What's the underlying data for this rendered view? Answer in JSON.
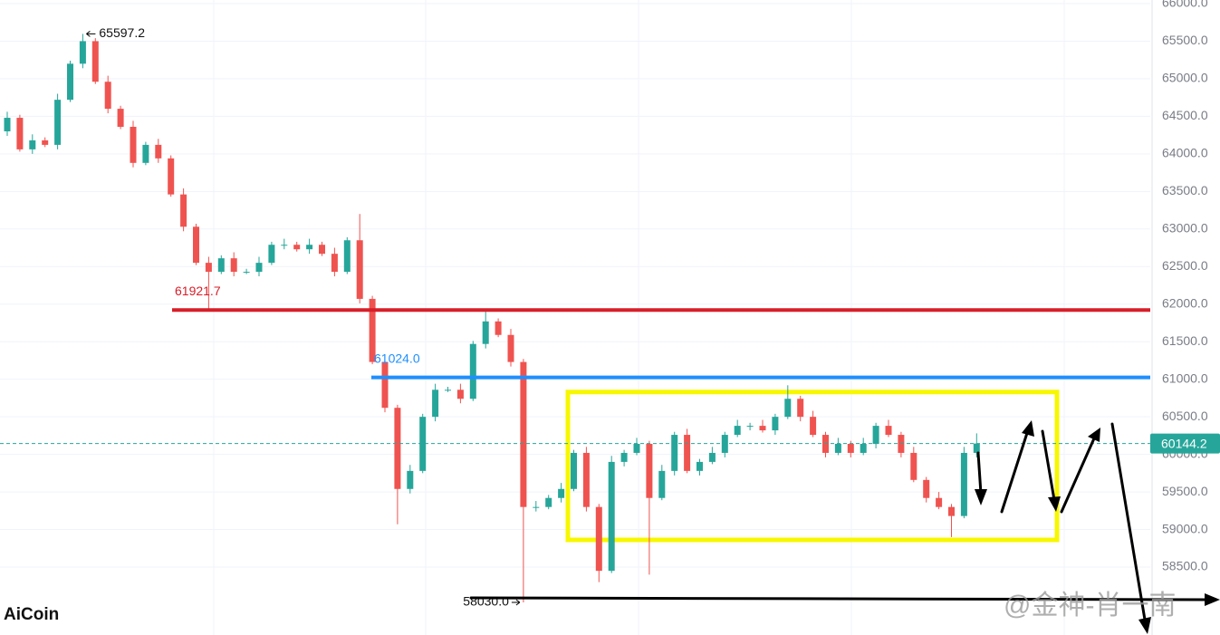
{
  "chart_data": {
    "type": "candlestick",
    "open": [
      64300,
      64480,
      64060,
      64180,
      64120,
      64720,
      65200,
      65500,
      64960,
      64600,
      64360,
      63880,
      64120,
      63940,
      63460,
      63030,
      62550,
      62430,
      62610,
      62430,
      62430,
      62550,
      62790,
      62790,
      62730,
      62790,
      62670,
      62430,
      62850,
      62070,
      61230,
      60620,
      59540,
      59780,
      60500,
      60860,
      60860,
      60740,
      61470,
      61770,
      61590,
      61230,
      59300,
      59300,
      59420,
      59540,
      60020,
      59300,
      58450,
      59900,
      60020,
      60140,
      59420,
      59780,
      60260,
      59780,
      59900,
      60020,
      60260,
      60380,
      60380,
      60320,
      60500,
      60740,
      60500,
      60260,
      60020,
      60140,
      60020,
      60140,
      60380,
      60260,
      60020,
      59660,
      59420,
      59300,
      59180,
      60020
    ],
    "high": [
      64560,
      64520,
      64260,
      64220,
      64800,
      65240,
      65597.2,
      65540,
      65040,
      64640,
      64440,
      64160,
      64200,
      63980,
      63540,
      63070,
      62630,
      62650,
      62690,
      62470,
      62630,
      62830,
      62870,
      62830,
      62870,
      62830,
      62750,
      62890,
      63200,
      62110,
      61310,
      60660,
      59860,
      60540,
      60940,
      60900,
      60940,
      61510,
      61920,
      61810,
      61670,
      61270,
      59380,
      59460,
      59620,
      60060,
      60100,
      59340,
      59980,
      60060,
      60220,
      60180,
      59860,
      60300,
      60340,
      59940,
      60100,
      60300,
      60460,
      60420,
      60460,
      60540,
      60920,
      60780,
      60580,
      60300,
      60220,
      60180,
      60220,
      60420,
      60460,
      60300,
      60100,
      59700,
      59500,
      59340,
      60100,
      60280
    ],
    "low": [
      64240,
      64030,
      64000,
      64090,
      64060,
      64690,
      65140,
      64930,
      64540,
      64330,
      63820,
      63850,
      63880,
      63430,
      62970,
      62520,
      61921.7,
      62400,
      62370,
      62400,
      62370,
      62520,
      62730,
      62700,
      62670,
      62640,
      62370,
      62400,
      62010,
      61200,
      60560,
      59070,
      59480,
      59750,
      60440,
      60830,
      60680,
      60710,
      61410,
      61560,
      61170,
      58030.0,
      59240,
      59270,
      59360,
      59510,
      59240,
      58300,
      58420,
      59840,
      59990,
      58400,
      59390,
      59720,
      59750,
      59720,
      59870,
      59960,
      60230,
      60320,
      60290,
      60260,
      60470,
      60440,
      60230,
      59960,
      59990,
      59960,
      59990,
      60080,
      60230,
      59960,
      59630,
      59360,
      59270,
      58900,
      59150,
      59960
    ],
    "close": [
      64480,
      64060,
      64180,
      64120,
      64720,
      65200,
      65500,
      64960,
      64600,
      64360,
      63880,
      64120,
      63940,
      63460,
      63030,
      62550,
      62430,
      62610,
      62430,
      62430,
      62550,
      62790,
      62790,
      62730,
      62790,
      62670,
      62430,
      62850,
      62070,
      61230,
      60620,
      59540,
      59780,
      60500,
      60860,
      60860,
      60740,
      61470,
      61770,
      61590,
      61230,
      59300,
      59300,
      59420,
      59540,
      60020,
      59300,
      58450,
      59900,
      60020,
      60140,
      59420,
      59780,
      60260,
      59780,
      59900,
      60020,
      60260,
      60380,
      60380,
      60320,
      60500,
      60740,
      60500,
      60260,
      60020,
      60140,
      60020,
      60140,
      60380,
      60260,
      60020,
      59660,
      59420,
      59300,
      59180,
      60020,
      60144.2
    ],
    "up_color": "#26a69a",
    "down_color": "#ef5350",
    "ylim": [
      57596,
      66048
    ],
    "yticks": [
      {
        "value": 58500,
        "label": "58500.0"
      },
      {
        "value": 59000,
        "label": "59000.0"
      },
      {
        "value": 59500,
        "label": "59500.0"
      },
      {
        "value": 60000,
        "label": "60000.0"
      },
      {
        "value": 60500,
        "label": "60500.0"
      },
      {
        "value": 61000,
        "label": "61000.0"
      },
      {
        "value": 61500,
        "label": "61500.0"
      },
      {
        "value": 62000,
        "label": "62000.0"
      },
      {
        "value": 62500,
        "label": "62500.0"
      },
      {
        "value": 63000,
        "label": "63000.0"
      },
      {
        "value": 63500,
        "label": "63500.0"
      },
      {
        "value": 64000,
        "label": "64000.0"
      },
      {
        "value": 64500,
        "label": "64500.0"
      },
      {
        "value": 65000,
        "label": "65000.0"
      },
      {
        "value": 65500,
        "label": "65500.0"
      },
      {
        "value": 66000,
        "label": "66000.0"
      }
    ],
    "grid": true,
    "levels": [
      {
        "value": 61921.7,
        "label": "61921.7",
        "color": "#d71e28"
      },
      {
        "value": 61024.0,
        "label": "61024.0",
        "color": "#1e8fff"
      }
    ],
    "current_price": {
      "value": 60144.2,
      "label": "60144.2",
      "color": "#26a69a"
    },
    "high_annotation": "65597.2",
    "low_annotation": "58030.0",
    "box": {
      "top": 60830,
      "bottom": 58862,
      "color": "#f7f700"
    }
  },
  "logo": "AiCoin",
  "watermark": "@金神-肖一南"
}
